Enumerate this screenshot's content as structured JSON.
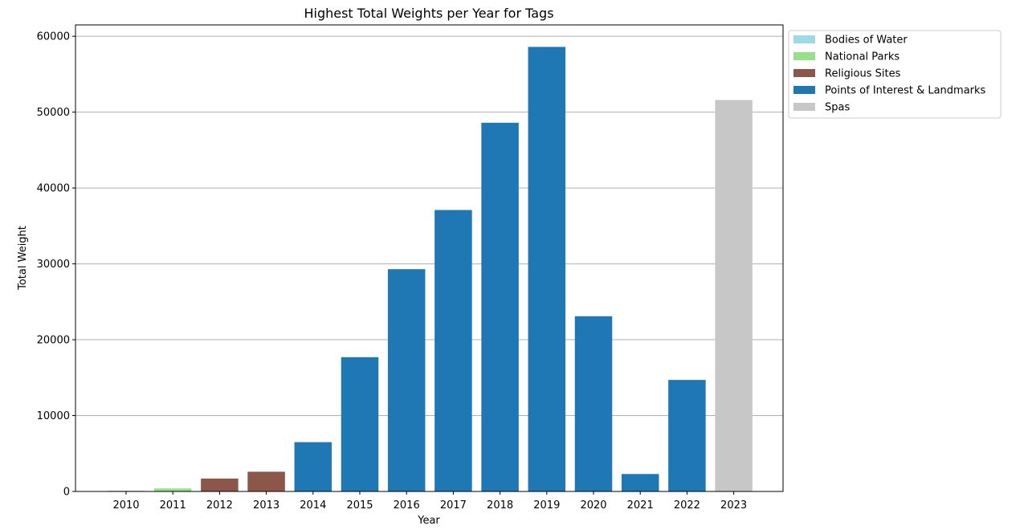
{
  "chart_data": {
    "type": "bar",
    "title": "Highest Total Weights per Year for Tags",
    "xlabel": "Year",
    "ylabel": "Total Weight",
    "ylim": [
      0,
      61500
    ],
    "yticks": [
      0,
      10000,
      20000,
      30000,
      40000,
      50000,
      60000
    ],
    "grid": "y",
    "legend_position": "outside-top-right",
    "categories": [
      "2010",
      "2011",
      "2012",
      "2013",
      "2014",
      "2015",
      "2016",
      "2017",
      "2018",
      "2019",
      "2020",
      "2021",
      "2022",
      "2023"
    ],
    "values": [
      100,
      400,
      1700,
      2600,
      6500,
      17700,
      29300,
      37100,
      48600,
      58600,
      23100,
      2300,
      14700,
      51600
    ],
    "bar_tags": [
      "Bodies of Water",
      "National Parks",
      "Religious Sites",
      "Religious Sites",
      "Points of Interest & Landmarks",
      "Points of Interest & Landmarks",
      "Points of Interest & Landmarks",
      "Points of Interest & Landmarks",
      "Points of Interest & Landmarks",
      "Points of Interest & Landmarks",
      "Points of Interest & Landmarks",
      "Points of Interest & Landmarks",
      "Points of Interest & Landmarks",
      "Spas"
    ],
    "legend": [
      {
        "name": "Bodies of Water",
        "color": "#9edae5"
      },
      {
        "name": "National Parks",
        "color": "#98df8a"
      },
      {
        "name": "Religious Sites",
        "color": "#8c564b"
      },
      {
        "name": "Points of Interest & Landmarks",
        "color": "#1f77b4"
      },
      {
        "name": "Spas",
        "color": "#c7c7c7"
      }
    ]
  }
}
